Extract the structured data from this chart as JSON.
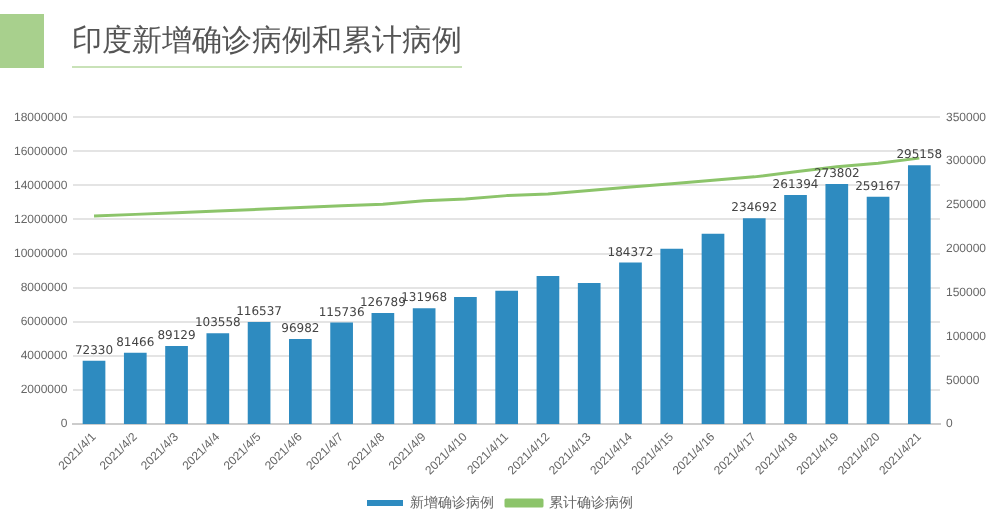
{
  "chart_data": {
    "type": "bar",
    "title": "印度新增确诊病例和累计病例",
    "categories": [
      "2021/4/1",
      "2021/4/2",
      "2021/4/3",
      "2021/4/4",
      "2021/4/5",
      "2021/4/6",
      "2021/4/7",
      "2021/4/8",
      "2021/4/9",
      "2021/4/10",
      "2021/4/11",
      "2021/4/12",
      "2021/4/13",
      "2021/4/14",
      "2021/4/15",
      "2021/4/16",
      "2021/4/17",
      "2021/4/18",
      "2021/4/19",
      "2021/4/20",
      "2021/4/21"
    ],
    "series": [
      {
        "name": "新增确诊病例",
        "axis": "y2",
        "color": "#2e8bc0",
        "values": [
          72330,
          81466,
          89129,
          103558,
          116537,
          96982,
          115736,
          126789,
          131968,
          145000,
          152000,
          169000,
          161000,
          184372,
          200000,
          217000,
          234692,
          261394,
          273802,
          259167,
          295158
        ],
        "value_labels": [
          "72330",
          "81466",
          "89129",
          "103558",
          "116537",
          "96982",
          "115736",
          "126789",
          "131968",
          null,
          null,
          null,
          null,
          "184372",
          null,
          null,
          "234692",
          "261394",
          "273802",
          "259167",
          "295158"
        ]
      },
      {
        "name": "累计确诊病例",
        "type": "line",
        "color": "#8cc46a",
        "marker": "none",
        "values": [
          12200000,
          12300000,
          12400000,
          12500000,
          12600000,
          12700000,
          12800000,
          12900000,
          13100000,
          13200000,
          13400000,
          13500000,
          13700000,
          13900000,
          14100000,
          14300000,
          14500000,
          14800000,
          15100000,
          15300000,
          15600000
        ]
      }
    ],
    "ylim": [
      0,
      18000000
    ],
    "yticks": [
      0,
      2000000,
      4000000,
      6000000,
      8000000,
      10000000,
      12000000,
      14000000,
      16000000,
      18000000
    ],
    "y2lim": [
      0,
      350000
    ],
    "y2ticks": [
      0,
      50000,
      100000,
      150000,
      200000,
      250000,
      300000,
      350000
    ],
    "grid": "y",
    "legend": "bottom"
  }
}
